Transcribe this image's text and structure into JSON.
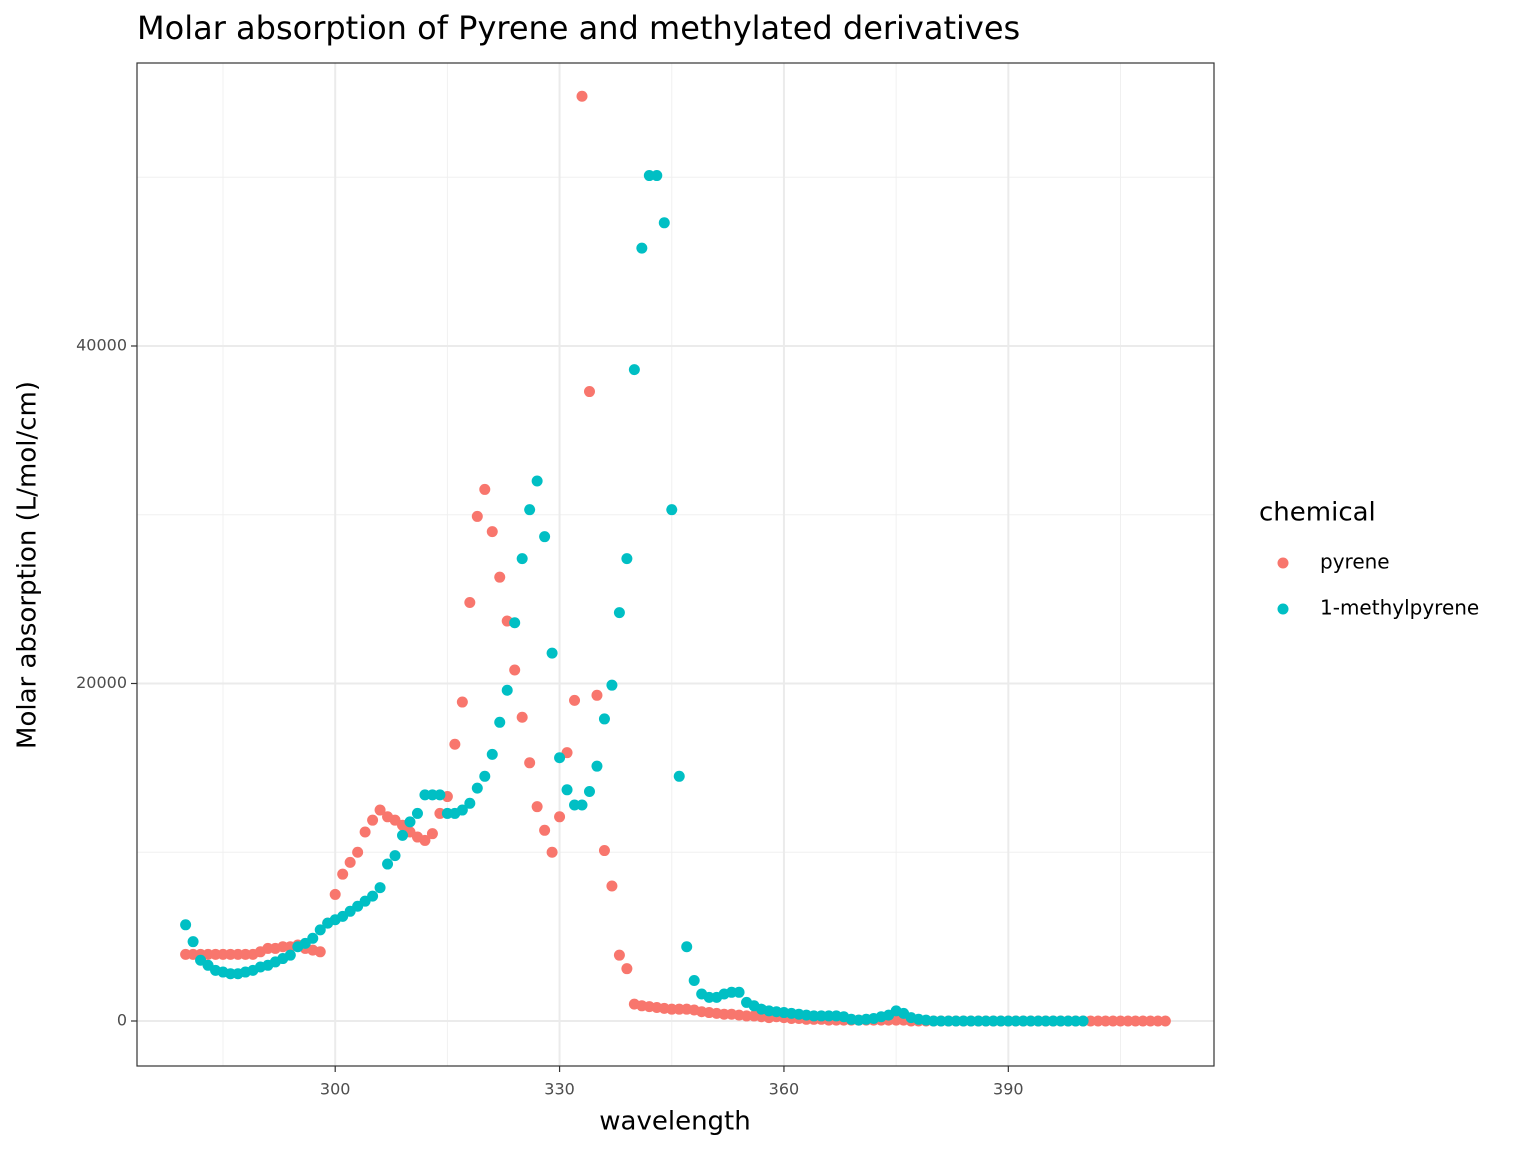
{
  "chart_data": {
    "type": "scatter",
    "title": "Molar absorption of Pyrene and methylated derivatives",
    "x_label": "wavelength",
    "y_label": "Molar absorption (L/mol/cm)",
    "legend_title": "chemical",
    "xlim": [
      273.5,
      417.5
    ],
    "ylim": [
      -2667,
      56770
    ],
    "xticks": [
      300,
      330,
      360,
      390
    ],
    "yticks": [
      0,
      20000,
      40000
    ],
    "grid": true,
    "legend": "right",
    "series": [
      {
        "name": "pyrene",
        "color": "#F8766D",
        "x": [
          280,
          281,
          282,
          283,
          284,
          285,
          286,
          287,
          288,
          289,
          290,
          291,
          292,
          293,
          294,
          295,
          296,
          297,
          298,
          299,
          300,
          301,
          302,
          303,
          304,
          305,
          306,
          307,
          308,
          309,
          310,
          311,
          312,
          313,
          314,
          315,
          316,
          317,
          318,
          319,
          320,
          321,
          322,
          323,
          324,
          325,
          326,
          327,
          328,
          329,
          330,
          331,
          332,
          333,
          334,
          335,
          336,
          337,
          338,
          339,
          340,
          341,
          342,
          343,
          344,
          345,
          346,
          347,
          348,
          349,
          350,
          351,
          352,
          353,
          354,
          355,
          356,
          357,
          358,
          359,
          360,
          361,
          362,
          363,
          364,
          365,
          366,
          367,
          368,
          369,
          370,
          371,
          372,
          373,
          374,
          375,
          376,
          377,
          378,
          379,
          380,
          381,
          382,
          383,
          384,
          385,
          386,
          387,
          388,
          389,
          390,
          391,
          392,
          393,
          394,
          395,
          396,
          397,
          398,
          399,
          400,
          401,
          402,
          403,
          404,
          405,
          406,
          407,
          408,
          409,
          410,
          411
        ],
        "values": [
          3950,
          3950,
          3950,
          3950,
          3950,
          3950,
          3950,
          3950,
          3950,
          3950,
          4100,
          4300,
          4300,
          4400,
          4400,
          4500,
          4300,
          4200,
          4100,
          5800,
          7500,
          8700,
          9400,
          10000,
          11200,
          11900,
          12500,
          12100,
          11900,
          11600,
          11200,
          10900,
          10700,
          11100,
          12300,
          13300,
          16400,
          18900,
          24800,
          29900,
          31500,
          29000,
          26300,
          23700,
          20800,
          18000,
          15300,
          12700,
          11300,
          10000,
          12100,
          15900,
          19000,
          54800,
          37300,
          19300,
          10100,
          8000,
          3900,
          3100,
          1000,
          900,
          850,
          800,
          750,
          700,
          700,
          700,
          650,
          550,
          500,
          450,
          400,
          400,
          350,
          300,
          300,
          250,
          200,
          250,
          200,
          150,
          150,
          100,
          100,
          100,
          50,
          50,
          50,
          50,
          50,
          50,
          50,
          50,
          50,
          50,
          50,
          0,
          0,
          0,
          0,
          0,
          0,
          0,
          0,
          0,
          0,
          0,
          0,
          0,
          0,
          0,
          0,
          0,
          0,
          0,
          0,
          0,
          0,
          0,
          0,
          0,
          0,
          0,
          0,
          0,
          0,
          0,
          0,
          0,
          0,
          0
        ]
      },
      {
        "name": "1-methylpyrene",
        "color": "#00BFC4",
        "x": [
          280,
          281,
          282,
          283,
          284,
          285,
          286,
          287,
          288,
          289,
          290,
          291,
          292,
          293,
          294,
          295,
          296,
          297,
          298,
          299,
          300,
          301,
          302,
          303,
          304,
          305,
          306,
          307,
          308,
          309,
          310,
          311,
          312,
          313,
          314,
          315,
          316,
          317,
          318,
          319,
          320,
          321,
          322,
          323,
          324,
          325,
          326,
          327,
          328,
          329,
          330,
          331,
          332,
          333,
          334,
          335,
          336,
          337,
          338,
          339,
          340,
          341,
          342,
          343,
          344,
          345,
          346,
          347,
          348,
          349,
          350,
          351,
          352,
          353,
          354,
          355,
          356,
          357,
          358,
          359,
          360,
          361,
          362,
          363,
          364,
          365,
          366,
          367,
          368,
          369,
          370,
          371,
          372,
          373,
          374,
          375,
          376,
          377,
          378,
          379,
          380,
          381,
          382,
          383,
          384,
          385,
          386,
          387,
          388,
          389,
          390,
          391,
          392,
          393,
          394,
          395,
          396,
          397,
          398,
          399,
          400
        ],
        "values": [
          5700,
          4700,
          3600,
          3300,
          3000,
          2900,
          2800,
          2800,
          2900,
          3000,
          3200,
          3300,
          3500,
          3700,
          3900,
          4400,
          4600,
          4900,
          5400,
          5800,
          6000,
          6200,
          6500,
          6800,
          7100,
          7400,
          7900,
          9300,
          9800,
          11000,
          11800,
          12300,
          13400,
          13400,
          13400,
          12300,
          12300,
          12500,
          12900,
          13800,
          14500,
          15800,
          17700,
          19600,
          23600,
          27400,
          30300,
          32000,
          28700,
          21800,
          15600,
          13700,
          12800,
          12800,
          13600,
          15100,
          17900,
          19900,
          24200,
          27400,
          38600,
          45800,
          50100,
          50100,
          47300,
          30300,
          14500,
          4400,
          2400,
          1600,
          1400,
          1400,
          1600,
          1700,
          1700,
          1100,
          900,
          700,
          600,
          550,
          500,
          450,
          400,
          350,
          300,
          300,
          300,
          300,
          250,
          100,
          50,
          100,
          150,
          250,
          350,
          600,
          450,
          200,
          100,
          50,
          0,
          0,
          0,
          0,
          0,
          0,
          0,
          0,
          0,
          0,
          0,
          0,
          0,
          0,
          0,
          0,
          0,
          0,
          0,
          0,
          0
        ]
      }
    ]
  }
}
